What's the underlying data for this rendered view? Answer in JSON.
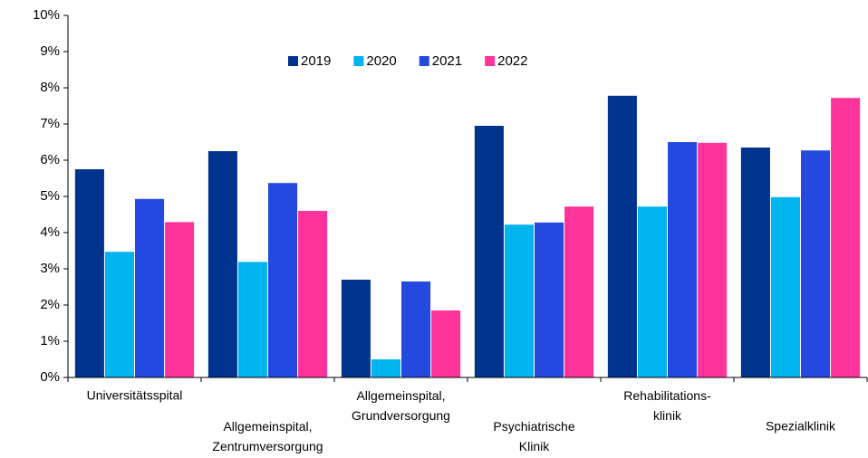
{
  "chart_data": {
    "type": "bar",
    "categories": [
      "Universitätsspital",
      "Allgemeinspital,\nZentrumversorgung",
      "Allgemeinspital,\nGrundversorgung",
      "Psychiatrische\nKlinik",
      "Rehabilitations-\nklinik",
      "Spezialklinik"
    ],
    "series": [
      {
        "name": "2019",
        "color": "#00338d",
        "values": [
          5.75,
          6.25,
          2.7,
          6.95,
          7.78,
          6.35
        ]
      },
      {
        "name": "2020",
        "color": "#00b4f0",
        "values": [
          3.47,
          3.19,
          0.5,
          4.22,
          4.72,
          4.98
        ]
      },
      {
        "name": "2021",
        "color": "#2449e0",
        "values": [
          4.93,
          5.37,
          2.65,
          4.28,
          6.5,
          6.27
        ]
      },
      {
        "name": "2022",
        "color": "#ff3399",
        "values": [
          4.29,
          4.6,
          1.85,
          4.72,
          6.48,
          7.72
        ]
      }
    ],
    "ylim": [
      0,
      10
    ],
    "yticks": [
      {
        "value": 0,
        "label": "0%"
      },
      {
        "value": 1,
        "label": "1%"
      },
      {
        "value": 2,
        "label": "2%"
      },
      {
        "value": 3,
        "label": "3%"
      },
      {
        "value": 4,
        "label": "4%"
      },
      {
        "value": 5,
        "label": "5%"
      },
      {
        "value": 6,
        "label": "6%"
      },
      {
        "value": 7,
        "label": "7%"
      },
      {
        "value": 8,
        "label": "8%"
      },
      {
        "value": 9,
        "label": "9%"
      },
      {
        "value": 10,
        "label": "10%"
      }
    ],
    "legend": "top"
  }
}
